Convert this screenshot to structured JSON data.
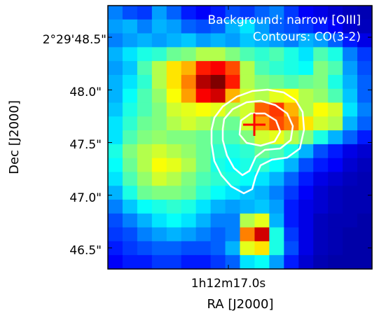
{
  "chart_data": {
    "type": "heatmap",
    "annotations": [
      "Background: narrow [OIII]",
      "Contours:  CO(3-2)"
    ],
    "xlabel": "RA [J2000]",
    "ylabel": "Dec [J2000]",
    "x_ticks": [
      "1h12m17.0s"
    ],
    "y_ticks": [
      "2°29'48.5\"",
      "48.0\"",
      "47.5\"",
      "47.0\"",
      "46.5\""
    ],
    "y_tick_values": [
      48.5,
      48.0,
      47.5,
      47.0,
      46.5
    ],
    "y_range": [
      46.3,
      48.8
    ],
    "colormap": "jet",
    "grid": [
      [
        0.25,
        0.2,
        0.18,
        0.28,
        0.22,
        0.15,
        0.12,
        0.15,
        0.2,
        0.18,
        0.22,
        0.25,
        0.18,
        0.12,
        0.1,
        0.08,
        0.06,
        0.05
      ],
      [
        0.28,
        0.3,
        0.25,
        0.3,
        0.28,
        0.22,
        0.2,
        0.22,
        0.3,
        0.35,
        0.28,
        0.22,
        0.2,
        0.18,
        0.15,
        0.12,
        0.08,
        0.06
      ],
      [
        0.25,
        0.28,
        0.3,
        0.28,
        0.3,
        0.32,
        0.28,
        0.3,
        0.28,
        0.32,
        0.3,
        0.28,
        0.25,
        0.3,
        0.28,
        0.22,
        0.15,
        0.1
      ],
      [
        0.3,
        0.35,
        0.4,
        0.42,
        0.48,
        0.5,
        0.55,
        0.55,
        0.5,
        0.45,
        0.42,
        0.45,
        0.4,
        0.35,
        0.45,
        0.4,
        0.25,
        0.18
      ],
      [
        0.28,
        0.32,
        0.45,
        0.55,
        0.65,
        0.7,
        0.85,
        0.88,
        0.8,
        0.55,
        0.45,
        0.42,
        0.4,
        0.38,
        0.5,
        0.45,
        0.28,
        0.2
      ],
      [
        0.3,
        0.35,
        0.42,
        0.55,
        0.65,
        0.75,
        0.95,
        1.0,
        0.85,
        0.55,
        0.5,
        0.48,
        0.45,
        0.48,
        0.5,
        0.4,
        0.3,
        0.22
      ],
      [
        0.3,
        0.38,
        0.45,
        0.52,
        0.62,
        0.72,
        0.88,
        0.92,
        0.7,
        0.58,
        0.55,
        0.6,
        0.62,
        0.55,
        0.52,
        0.45,
        0.32,
        0.22
      ],
      [
        0.32,
        0.4,
        0.45,
        0.5,
        0.58,
        0.6,
        0.62,
        0.6,
        0.55,
        0.58,
        0.78,
        0.82,
        0.7,
        0.55,
        0.62,
        0.58,
        0.35,
        0.25
      ],
      [
        0.35,
        0.42,
        0.48,
        0.5,
        0.55,
        0.58,
        0.55,
        0.5,
        0.48,
        0.58,
        0.72,
        0.8,
        0.75,
        0.65,
        0.58,
        0.55,
        0.3,
        0.22
      ],
      [
        0.35,
        0.45,
        0.5,
        0.52,
        0.5,
        0.5,
        0.48,
        0.45,
        0.45,
        0.5,
        0.58,
        0.6,
        0.55,
        0.5,
        0.4,
        0.3,
        0.22,
        0.15
      ],
      [
        0.4,
        0.5,
        0.55,
        0.58,
        0.55,
        0.52,
        0.48,
        0.42,
        0.4,
        0.42,
        0.48,
        0.45,
        0.4,
        0.3,
        0.2,
        0.15,
        0.1,
        0.08
      ],
      [
        0.38,
        0.48,
        0.55,
        0.62,
        0.6,
        0.55,
        0.48,
        0.4,
        0.38,
        0.4,
        0.42,
        0.38,
        0.3,
        0.2,
        0.15,
        0.12,
        0.08,
        0.06
      ],
      [
        0.35,
        0.45,
        0.52,
        0.58,
        0.55,
        0.5,
        0.45,
        0.42,
        0.4,
        0.38,
        0.35,
        0.3,
        0.22,
        0.15,
        0.1,
        0.08,
        0.06,
        0.05
      ],
      [
        0.3,
        0.4,
        0.48,
        0.5,
        0.5,
        0.48,
        0.42,
        0.38,
        0.35,
        0.32,
        0.3,
        0.25,
        0.18,
        0.12,
        0.08,
        0.06,
        0.05,
        0.05
      ],
      [
        0.25,
        0.32,
        0.38,
        0.4,
        0.42,
        0.4,
        0.35,
        0.3,
        0.28,
        0.3,
        0.32,
        0.28,
        0.15,
        0.1,
        0.08,
        0.06,
        0.05,
        0.05
      ],
      [
        0.2,
        0.25,
        0.3,
        0.35,
        0.38,
        0.35,
        0.3,
        0.25,
        0.25,
        0.55,
        0.6,
        0.3,
        0.15,
        0.1,
        0.06,
        0.05,
        0.05,
        0.04
      ],
      [
        0.18,
        0.2,
        0.25,
        0.28,
        0.3,
        0.28,
        0.25,
        0.22,
        0.25,
        0.75,
        0.92,
        0.4,
        0.18,
        0.1,
        0.06,
        0.05,
        0.04,
        0.04
      ],
      [
        0.15,
        0.18,
        0.2,
        0.22,
        0.22,
        0.2,
        0.2,
        0.22,
        0.3,
        0.6,
        0.65,
        0.4,
        0.2,
        0.1,
        0.06,
        0.05,
        0.04,
        0.04
      ],
      [
        0.12,
        0.15,
        0.15,
        0.18,
        0.18,
        0.15,
        0.15,
        0.18,
        0.22,
        0.35,
        0.38,
        0.28,
        0.15,
        0.08,
        0.05,
        0.04,
        0.04,
        0.04
      ]
    ],
    "contour_levels": 3,
    "marker": "cross"
  },
  "colors": {
    "contour": "#ffffff",
    "marker": "#ff0000",
    "legend_text": "#ffffff"
  }
}
